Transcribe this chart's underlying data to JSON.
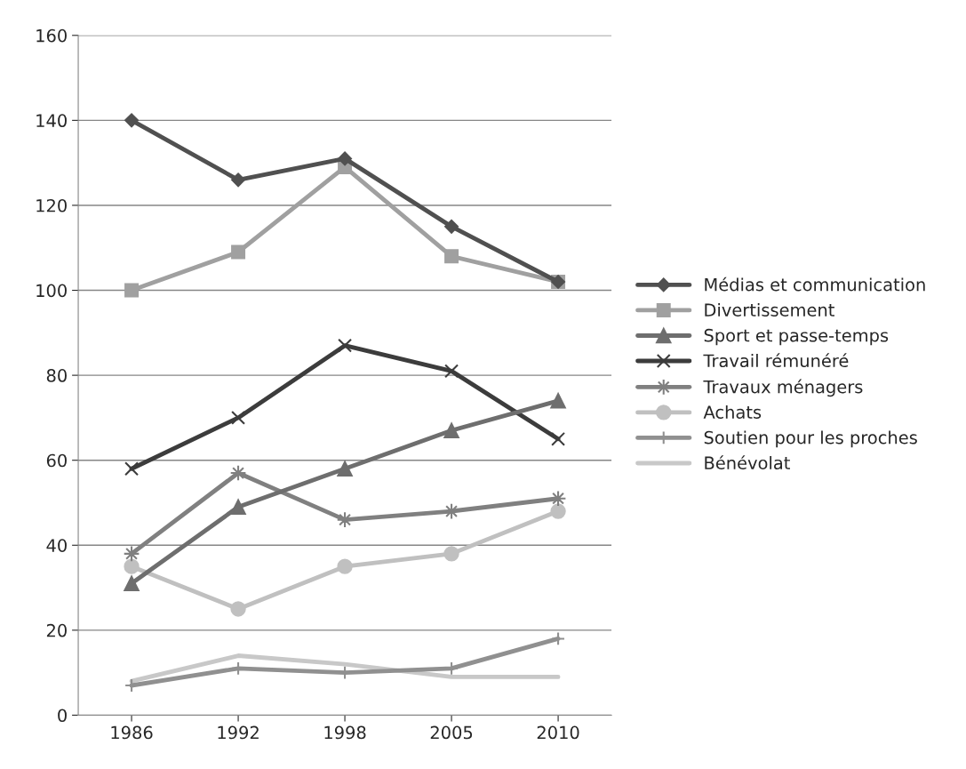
{
  "chart_data": {
    "type": "line",
    "categories": [
      "1986",
      "1992",
      "1998",
      "2005",
      "2010"
    ],
    "series": [
      {
        "name": "Médias et communication",
        "color": "#505050",
        "marker": "diamond",
        "values": [
          140,
          126,
          131,
          115,
          102
        ]
      },
      {
        "name": "Divertissement",
        "color": "#a0a0a0",
        "marker": "square",
        "values": [
          100,
          109,
          129,
          108,
          102
        ]
      },
      {
        "name": "Sport et passe-temps",
        "color": "#6e6e6e",
        "marker": "triangle",
        "values": [
          31,
          49,
          58,
          67,
          74
        ]
      },
      {
        "name": "Travail rémunéré",
        "color": "#3c3c3c",
        "marker": "cross",
        "values": [
          58,
          70,
          87,
          81,
          65
        ]
      },
      {
        "name": "Travaux ménagers",
        "color": "#808080",
        "marker": "star",
        "values": [
          38,
          57,
          46,
          48,
          51
        ]
      },
      {
        "name": "Achats",
        "color": "#c0c0c0",
        "marker": "circle",
        "values": [
          35,
          25,
          35,
          38,
          48
        ]
      },
      {
        "name": "Soutien pour les proches",
        "color": "#909090",
        "marker": "plus",
        "values": [
          7,
          11,
          10,
          11,
          18
        ]
      },
      {
        "name": "Bénévolat",
        "color": "#c8c8c8",
        "marker": "none",
        "values": [
          8,
          14,
          12,
          9,
          9
        ]
      }
    ],
    "ylim": [
      0,
      160
    ],
    "yticks": [
      0,
      20,
      40,
      60,
      80,
      100,
      120,
      140,
      160
    ],
    "grid": "y",
    "legend": "right"
  }
}
